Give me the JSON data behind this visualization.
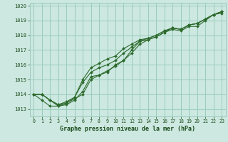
{
  "title": "Graphe pression niveau de la mer (hPa)",
  "bg_color": "#cce8e0",
  "grid_color": "#99ccbb",
  "line_color": "#2d6a2d",
  "text_color": "#1a4a1a",
  "xlim": [
    -0.5,
    23.5
  ],
  "ylim": [
    1012.5,
    1020.2
  ],
  "yticks": [
    1013,
    1014,
    1015,
    1016,
    1017,
    1018,
    1019,
    1020
  ],
  "xticks": [
    0,
    1,
    2,
    3,
    4,
    5,
    6,
    7,
    8,
    9,
    10,
    11,
    12,
    13,
    14,
    15,
    16,
    17,
    18,
    19,
    20,
    21,
    22,
    23
  ],
  "series": [
    [
      1014.0,
      1014.0,
      1013.6,
      1013.2,
      1013.4,
      1013.7,
      1014.0,
      1015.0,
      1015.3,
      1015.5,
      1016.0,
      1016.3,
      1017.0,
      1017.6,
      1017.7,
      1017.9,
      1018.2,
      1018.4,
      1018.3,
      1018.6,
      1018.6,
      1019.0,
      1019.4,
      1019.5
    ],
    [
      1014.0,
      1013.6,
      1013.2,
      1013.2,
      1013.3,
      1013.6,
      1014.2,
      1015.2,
      1015.3,
      1015.6,
      1015.9,
      1016.3,
      1016.8,
      1017.4,
      1017.7,
      1017.9,
      1018.2,
      1018.5,
      1018.4,
      1018.7,
      1018.8,
      1019.1,
      1019.4,
      1019.6
    ],
    [
      1014.0,
      1014.0,
      1013.6,
      1013.3,
      1013.4,
      1013.8,
      1015.0,
      1015.8,
      1016.1,
      1016.4,
      1016.6,
      1017.1,
      1017.4,
      1017.7,
      1017.8,
      1018.0,
      1018.3,
      1018.5,
      1018.4,
      1018.7,
      1018.8,
      1019.1,
      1019.4,
      1019.6
    ],
    [
      1014.0,
      1014.0,
      1013.6,
      1013.3,
      1013.5,
      1013.8,
      1014.8,
      1015.5,
      1015.8,
      1016.0,
      1016.3,
      1016.8,
      1017.2,
      1017.6,
      1017.8,
      1018.0,
      1018.3,
      1018.5,
      1018.4,
      1018.7,
      1018.8,
      1019.1,
      1019.4,
      1019.6
    ]
  ]
}
